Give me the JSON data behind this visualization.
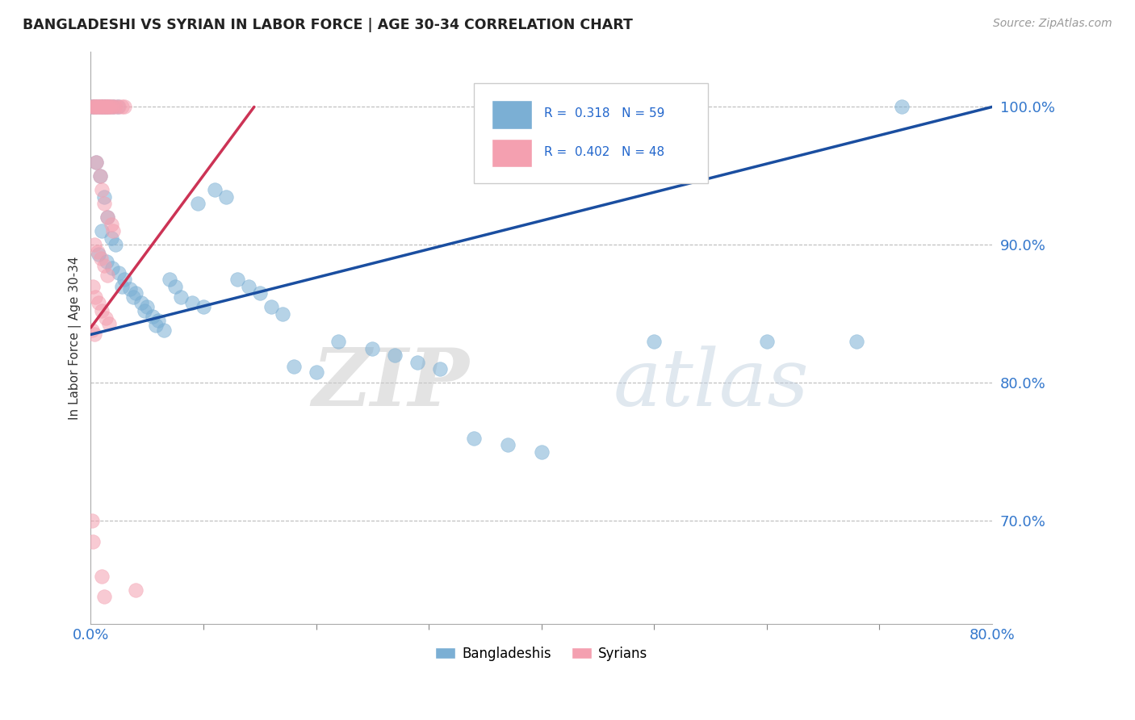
{
  "title": "BANGLADESHI VS SYRIAN IN LABOR FORCE | AGE 30-34 CORRELATION CHART",
  "source": "Source: ZipAtlas.com",
  "ylabel": "In Labor Force | Age 30-34",
  "ytick_labels": [
    "70.0%",
    "80.0%",
    "90.0%",
    "100.0%"
  ],
  "ytick_values": [
    0.7,
    0.8,
    0.9,
    1.0
  ],
  "xlim": [
    0.0,
    0.8
  ],
  "ylim": [
    0.625,
    1.04
  ],
  "r_blue": 0.318,
  "n_blue": 59,
  "r_pink": 0.402,
  "n_pink": 48,
  "legend_label_blue": "Bangladeshis",
  "legend_label_pink": "Syrians",
  "blue_color": "#7BAFD4",
  "pink_color": "#F4A0B0",
  "blue_line_color": "#1A4EA0",
  "pink_line_color": "#CC3355",
  "watermark_zip": "ZIP",
  "watermark_atlas": "atlas",
  "blue_line_x0": 0.0,
  "blue_line_y0": 0.835,
  "blue_line_x1": 0.8,
  "blue_line_y1": 1.0,
  "pink_line_x0": 0.0,
  "pink_line_y0": 0.84,
  "pink_line_x1": 0.145,
  "pink_line_y1": 1.0,
  "blue_dots": [
    [
      0.001,
      1.0
    ],
    [
      0.003,
      1.0
    ],
    [
      0.006,
      1.0
    ],
    [
      0.009,
      1.0
    ],
    [
      0.011,
      1.0
    ],
    [
      0.013,
      1.0
    ],
    [
      0.016,
      1.0
    ],
    [
      0.02,
      1.0
    ],
    [
      0.024,
      1.0
    ],
    [
      0.005,
      0.96
    ],
    [
      0.008,
      0.95
    ],
    [
      0.012,
      0.935
    ],
    [
      0.015,
      0.92
    ],
    [
      0.01,
      0.91
    ],
    [
      0.018,
      0.905
    ],
    [
      0.022,
      0.9
    ],
    [
      0.007,
      0.893
    ],
    [
      0.014,
      0.888
    ],
    [
      0.019,
      0.883
    ],
    [
      0.025,
      0.88
    ],
    [
      0.03,
      0.875
    ],
    [
      0.028,
      0.87
    ],
    [
      0.035,
      0.868
    ],
    [
      0.04,
      0.865
    ],
    [
      0.038,
      0.862
    ],
    [
      0.045,
      0.858
    ],
    [
      0.05,
      0.855
    ],
    [
      0.048,
      0.852
    ],
    [
      0.055,
      0.848
    ],
    [
      0.06,
      0.845
    ],
    [
      0.058,
      0.842
    ],
    [
      0.065,
      0.838
    ],
    [
      0.07,
      0.875
    ],
    [
      0.075,
      0.87
    ],
    [
      0.08,
      0.862
    ],
    [
      0.09,
      0.858
    ],
    [
      0.1,
      0.855
    ],
    [
      0.11,
      0.94
    ],
    [
      0.12,
      0.935
    ],
    [
      0.095,
      0.93
    ],
    [
      0.13,
      0.875
    ],
    [
      0.14,
      0.87
    ],
    [
      0.15,
      0.865
    ],
    [
      0.16,
      0.855
    ],
    [
      0.17,
      0.85
    ],
    [
      0.18,
      0.812
    ],
    [
      0.2,
      0.808
    ],
    [
      0.22,
      0.83
    ],
    [
      0.25,
      0.825
    ],
    [
      0.27,
      0.82
    ],
    [
      0.29,
      0.815
    ],
    [
      0.31,
      0.81
    ],
    [
      0.34,
      0.76
    ],
    [
      0.37,
      0.755
    ],
    [
      0.4,
      0.75
    ],
    [
      0.5,
      0.83
    ],
    [
      0.6,
      0.83
    ],
    [
      0.68,
      0.83
    ],
    [
      0.72,
      1.0
    ]
  ],
  "pink_dots": [
    [
      0.001,
      1.0
    ],
    [
      0.002,
      1.0
    ],
    [
      0.003,
      1.0
    ],
    [
      0.004,
      1.0
    ],
    [
      0.005,
      1.0
    ],
    [
      0.006,
      1.0
    ],
    [
      0.007,
      1.0
    ],
    [
      0.008,
      1.0
    ],
    [
      0.009,
      1.0
    ],
    [
      0.01,
      1.0
    ],
    [
      0.011,
      1.0
    ],
    [
      0.012,
      1.0
    ],
    [
      0.013,
      1.0
    ],
    [
      0.014,
      1.0
    ],
    [
      0.015,
      1.0
    ],
    [
      0.016,
      1.0
    ],
    [
      0.017,
      1.0
    ],
    [
      0.018,
      1.0
    ],
    [
      0.02,
      1.0
    ],
    [
      0.022,
      1.0
    ],
    [
      0.025,
      1.0
    ],
    [
      0.028,
      1.0
    ],
    [
      0.03,
      1.0
    ],
    [
      0.005,
      0.96
    ],
    [
      0.008,
      0.95
    ],
    [
      0.01,
      0.94
    ],
    [
      0.012,
      0.93
    ],
    [
      0.015,
      0.92
    ],
    [
      0.018,
      0.915
    ],
    [
      0.02,
      0.91
    ],
    [
      0.003,
      0.9
    ],
    [
      0.006,
      0.895
    ],
    [
      0.009,
      0.89
    ],
    [
      0.012,
      0.885
    ],
    [
      0.015,
      0.878
    ],
    [
      0.002,
      0.87
    ],
    [
      0.004,
      0.862
    ],
    [
      0.007,
      0.858
    ],
    [
      0.01,
      0.852
    ],
    [
      0.013,
      0.847
    ],
    [
      0.016,
      0.843
    ],
    [
      0.001,
      0.838
    ],
    [
      0.003,
      0.835
    ],
    [
      0.001,
      0.7
    ],
    [
      0.002,
      0.685
    ],
    [
      0.01,
      0.66
    ],
    [
      0.012,
      0.645
    ],
    [
      0.04,
      0.65
    ]
  ]
}
